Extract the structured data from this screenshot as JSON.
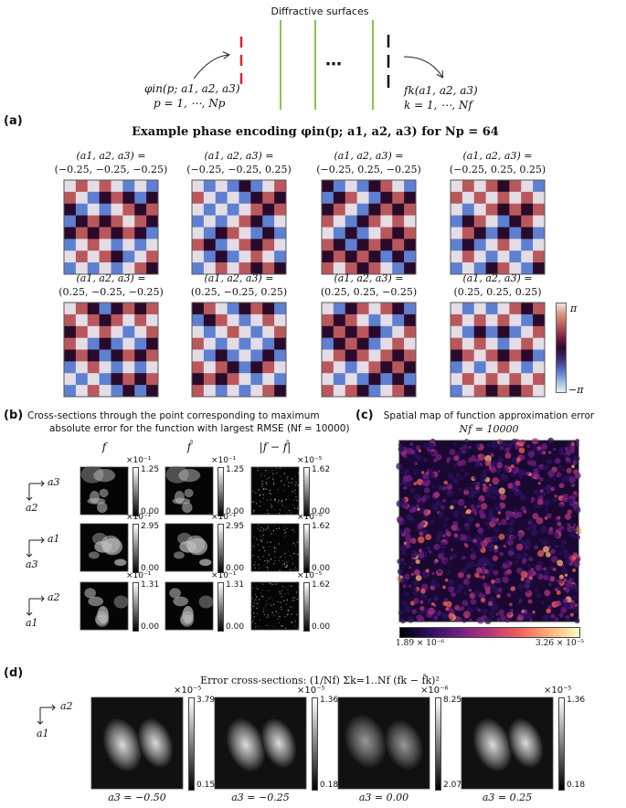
{
  "top_diagram": {
    "title": "Diffractive surfaces",
    "input_label": "φin(p; a1, a2, a3)",
    "input_sub": "p = 1, ⋯, Np",
    "output_label": "fk(a1, a2, a3)",
    "output_sub": "k = 1, ⋯, Nf",
    "ellipsis": "⋯"
  },
  "panel_a": {
    "label": "(a)",
    "title": "Example phase encoding φin(p; a1, a2, a3) for Np = 64",
    "param_prefix": "(a1, a2, a3) =",
    "params": [
      "(−0.25, −0.25, −0.25)",
      "(−0.25, −0.25, 0.25)",
      "(−0.25, 0.25, −0.25)",
      "(−0.25, 0.25, 0.25)",
      "(0.25, −0.25, −0.25)",
      "(0.25, −0.25, 0.25)",
      "(0.25, 0.25, −0.25)",
      "(0.25, 0.25, 0.25)"
    ],
    "colorbar_max": "π",
    "colorbar_min": "−π"
  },
  "panel_b": {
    "label": "(b)",
    "title_line1": "Cross-sections through the point corresponding to maximum",
    "title_line2": "absolute error for the function with largest RMSE (Nf = 10000)",
    "col_headers": [
      "f",
      "f̂",
      "|f − f̂|"
    ],
    "rows": [
      {
        "axis_h": "a3",
        "axis_v": "a2",
        "scale": [
          "×10⁻¹",
          "×10⁻¹",
          "×10⁻⁵"
        ],
        "max": [
          "1.25",
          "1.25",
          "1.62"
        ],
        "min": [
          "0.00",
          "0.00",
          "0.00"
        ]
      },
      {
        "axis_h": "a1",
        "axis_v": "a3",
        "scale": [
          "×10⁻¹",
          "×10⁻¹",
          "×10⁻⁵"
        ],
        "max": [
          "2.95",
          "2.95",
          "1.62"
        ],
        "min": [
          "0.00",
          "0.00",
          "0.00"
        ]
      },
      {
        "axis_h": "a2",
        "axis_v": "a1",
        "scale": [
          "×10⁻¹",
          "×10⁻¹",
          "×10⁻⁵"
        ],
        "max": [
          "1.31",
          "1.31",
          "1.62"
        ],
        "min": [
          "0.00",
          "0.00",
          "0.00"
        ]
      }
    ]
  },
  "panel_c": {
    "label": "(c)",
    "title_line1": "Spatial map of function approximation error",
    "title_line2": "Nf = 10000",
    "cb_min": "1.89 × 10⁻⁶",
    "cb_max": "3.26 × 10⁻⁵"
  },
  "panel_d": {
    "label": "(d)",
    "title": "Error cross-sections: (1/Nf) Σk=1..Nf (fk − f̂k)²",
    "axis_h": "a2",
    "axis_v": "a1",
    "maps": [
      {
        "caption": "a3 = −0.50",
        "scale": "×10⁻⁵",
        "max": "3.79",
        "min": "0.15"
      },
      {
        "caption": "a3 = −0.25",
        "scale": "×10⁻⁵",
        "max": "1.36",
        "min": "0.18"
      },
      {
        "caption": "a3 = 0.00",
        "scale": "×10⁻⁶",
        "max": "8.25",
        "min": "2.07"
      },
      {
        "caption": "a3 = 0.25",
        "scale": "×10⁻⁵",
        "max": "1.36",
        "min": "0.18"
      }
    ]
  },
  "colors": {
    "input_mask": "#e0202a",
    "diffractive_layer": "#8bc34a",
    "output_mask": "#111111",
    "phase_palette": [
      "#e4dde6",
      "#2a0a2a",
      "#5f7fd0",
      "#b9585c"
    ]
  }
}
